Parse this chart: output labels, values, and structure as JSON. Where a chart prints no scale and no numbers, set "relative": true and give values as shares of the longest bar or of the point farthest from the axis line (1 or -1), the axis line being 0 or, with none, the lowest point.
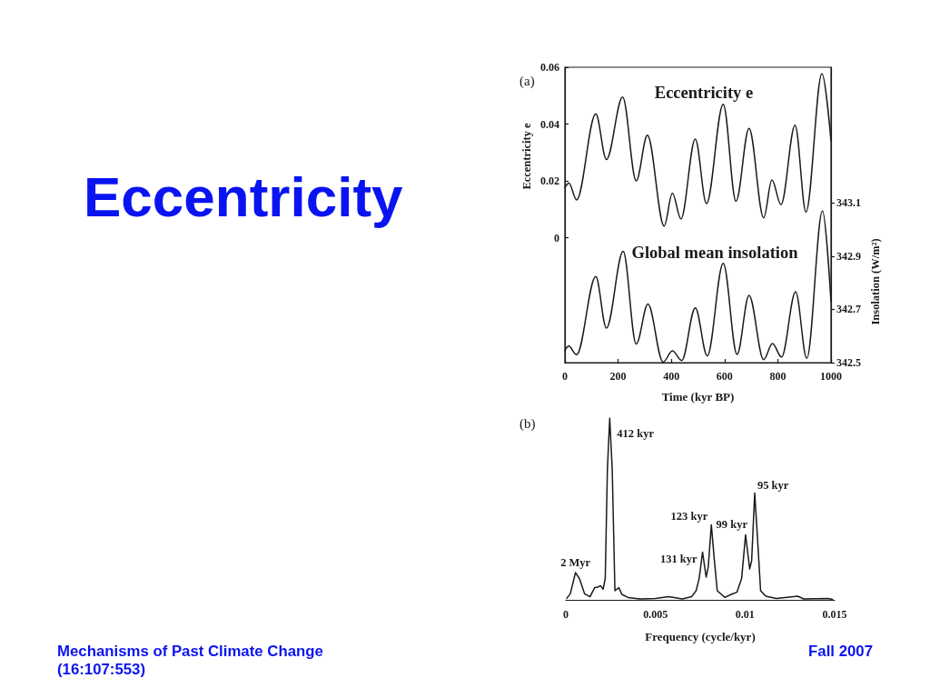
{
  "chart_data": [
    {
      "type": "line",
      "title": "Eccentricity",
      "xlabel": "Time (kyr BP)",
      "ylabel": "Eccentricity e",
      "y2label": "Insolation (W/m²)",
      "annotations": [
        "(a)"
      ],
      "xlim": [
        0,
        1000
      ],
      "xticks": [
        0,
        200,
        400,
        600,
        800,
        1000
      ],
      "ylim": [
        -0.044,
        0.06
      ],
      "yticks": [
        0,
        0.02,
        0.04,
        0.06
      ],
      "y2lim": [
        342.5,
        343.61
      ],
      "y2ticks": [
        342.5,
        342.7,
        342.9,
        343.1
      ],
      "series": [
        {
          "name": "Eccentricity e",
          "color": "#1a1a1a",
          "x": [
            0,
            15,
            44,
            116,
            156,
            217,
            268,
            310,
            373,
            404,
            436,
            490,
            532,
            595,
            643,
            692,
            747,
            778,
            812,
            865,
            906,
            966,
            1000
          ],
          "values": [
            0.0176,
            0.0192,
            0.0133,
            0.0436,
            0.0275,
            0.0495,
            0.02,
            0.0361,
            0.0041,
            0.0157,
            0.0066,
            0.0347,
            0.012,
            0.047,
            0.0128,
            0.0385,
            0.007,
            0.0203,
            0.0116,
            0.0396,
            0.009,
            0.0578,
            0.034
          ]
        },
        {
          "name": "Global mean insolation",
          "color": "#1a1a1a",
          "axis": "y2",
          "x": [
            0,
            14,
            44,
            116,
            156,
            219,
            268,
            312,
            369,
            404,
            439,
            490,
            535,
            595,
            647,
            692,
            747,
            780,
            814,
            867,
            909,
            968,
            1000
          ],
          "values": [
            342.545,
            342.562,
            342.53,
            342.824,
            342.63,
            342.918,
            342.57,
            342.72,
            342.502,
            342.544,
            342.508,
            342.706,
            342.525,
            342.873,
            342.531,
            342.753,
            342.511,
            342.572,
            342.521,
            342.766,
            342.516,
            343.07,
            342.73
          ]
        }
      ]
    },
    {
      "type": "line",
      "relative": true,
      "xlabel": "Frequency (cycle/kyr)",
      "color": "#1a1a1a",
      "xlim": [
        0,
        0.015
      ],
      "xticks": [
        0,
        0.005,
        0.01,
        0.015
      ],
      "x": [
        5e-05,
        0.00025,
        0.00054,
        0.00076,
        0.00105,
        0.00135,
        0.00161,
        0.00178,
        0.00194,
        0.00208,
        0.0022,
        0.00232,
        0.00245,
        0.00259,
        0.00274,
        0.00296,
        0.00313,
        0.00347,
        0.00414,
        0.00499,
        0.00575,
        0.00651,
        0.00702,
        0.00727,
        0.00744,
        0.00763,
        0.00783,
        0.00795,
        0.00812,
        0.00829,
        0.00845,
        0.00888,
        0.00922,
        0.00955,
        0.00981,
        0.01003,
        0.01026,
        0.01037,
        0.01054,
        0.0107,
        0.01087,
        0.01116,
        0.01175,
        0.01294,
        0.01327,
        0.01463,
        0.01488
      ],
      "values": [
        0.008,
        0.033,
        0.15,
        0.117,
        0.033,
        0.017,
        0.067,
        0.07,
        0.078,
        0.058,
        0.117,
        0.717,
        1,
        0.717,
        0.05,
        0.067,
        0.03,
        0.013,
        0.005,
        0.008,
        0.017,
        0.005,
        0.017,
        0.05,
        0.117,
        0.263,
        0.125,
        0.183,
        0.413,
        0.217,
        0.05,
        0.013,
        0.03,
        0.042,
        0.117,
        0.358,
        0.17,
        0.217,
        0.587,
        0.333,
        0.05,
        0.02,
        0.007,
        0.02,
        0.005,
        0.007,
        0.003
      ],
      "annotations": [
        "(b)",
        {
          "text": "412 kyr",
          "x": 0.00245,
          "y": 1
        },
        {
          "text": "2 Myr",
          "x": 0.00054,
          "y": 0.15
        },
        {
          "text": "131 kyr",
          "x": 0.00763,
          "y": 0.263
        },
        {
          "text": "123 kyr",
          "x": 0.00812,
          "y": 0.413
        },
        {
          "text": "99 kyr",
          "x": 0.01003,
          "y": 0.358
        },
        {
          "text": "95 kyr",
          "x": 0.01054,
          "y": 0.587
        },
        "Mechanisms of Past Climate Change",
        "(16:107:553)",
        "Fall 2007"
      ]
    }
  ]
}
